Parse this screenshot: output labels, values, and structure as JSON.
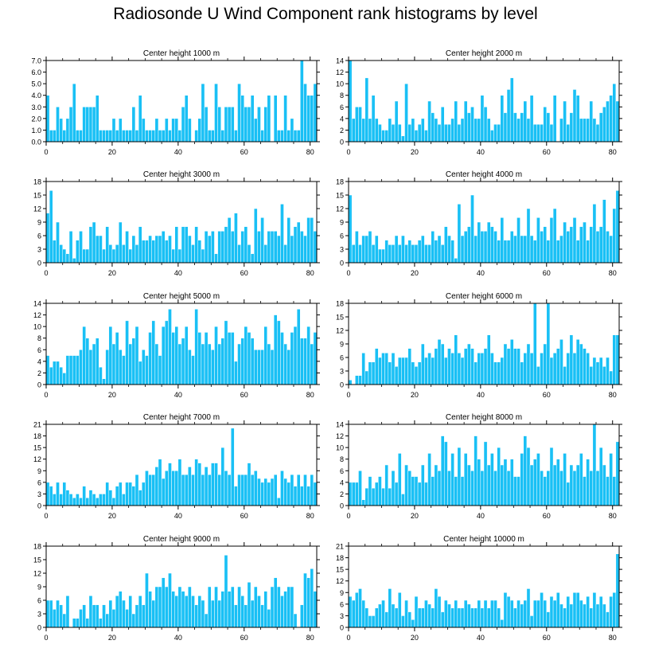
{
  "figure_title": "Radiosonde U Wind Component rank histograms by level",
  "colors": {
    "bar": "#19c0f5",
    "bar_edge": "#ffffff",
    "axis": "#000000"
  },
  "chart_data": [
    {
      "type": "bar",
      "title": "Center height 1000 m",
      "xlim": [
        0,
        82
      ],
      "ylim": [
        0,
        7
      ],
      "xticks": [
        0,
        20,
        40,
        60,
        80
      ],
      "yticks": [
        0,
        1,
        2,
        3,
        4,
        5,
        6,
        7
      ],
      "ytick_labels": [
        "0.0",
        "1.0",
        "2.0",
        "3.0",
        "4.0",
        "5.0",
        "6.0",
        "7.0"
      ],
      "values": [
        4,
        1,
        1,
        3,
        2,
        1,
        2,
        3,
        5,
        1,
        1,
        3,
        3,
        3,
        3,
        4,
        1,
        1,
        1,
        1,
        2,
        1,
        2,
        1,
        1,
        1,
        3,
        1,
        4,
        2,
        1,
        1,
        1,
        2,
        1,
        1,
        2,
        1,
        2,
        2,
        1,
        3,
        4,
        2,
        0,
        1,
        2,
        5,
        3,
        1,
        1,
        5,
        3,
        1,
        3,
        3,
        3,
        1,
        5,
        4,
        3,
        3,
        4,
        2,
        3,
        1,
        3,
        4,
        0,
        4,
        1,
        1,
        4,
        1,
        2,
        1,
        1,
        7,
        5,
        4,
        4,
        5
      ]
    },
    {
      "type": "bar",
      "title": "Center height 2000 m",
      "xlim": [
        0,
        82
      ],
      "ylim": [
        0,
        14
      ],
      "xticks": [
        0,
        20,
        40,
        60,
        80
      ],
      "yticks": [
        0,
        2,
        4,
        6,
        8,
        10,
        12,
        14
      ],
      "ytick_labels": [
        "0",
        "2",
        "4",
        "6",
        "8",
        "10",
        "12",
        "14"
      ],
      "values": [
        14,
        4,
        6,
        6,
        4,
        11,
        4,
        8,
        4,
        3,
        2,
        2,
        4,
        3,
        7,
        3,
        1,
        10,
        3,
        4,
        2,
        3,
        4,
        2,
        7,
        5,
        4,
        3,
        6,
        3,
        3,
        4,
        7,
        3,
        4,
        7,
        5,
        6,
        4,
        4,
        8,
        6,
        4,
        2,
        3,
        3,
        8,
        5,
        9,
        11,
        5,
        4,
        5,
        7,
        4,
        8,
        3,
        3,
        3,
        6,
        5,
        3,
        8,
        0,
        4,
        7,
        3,
        5,
        9,
        8,
        4,
        4,
        4,
        7,
        4,
        3,
        5,
        6,
        7,
        8,
        10,
        7
      ]
    },
    {
      "type": "bar",
      "title": "Center height 3000 m",
      "xlim": [
        0,
        82
      ],
      "ylim": [
        0,
        18
      ],
      "xticks": [
        0,
        20,
        40,
        60,
        80
      ],
      "yticks": [
        0,
        3,
        6,
        9,
        12,
        15,
        18
      ],
      "ytick_labels": [
        "0",
        "3",
        "6",
        "9",
        "12",
        "15",
        "18"
      ],
      "values": [
        11,
        16,
        5,
        9,
        4,
        3,
        2,
        7,
        1,
        5,
        7,
        3,
        3,
        8,
        9,
        6,
        6,
        3,
        8,
        4,
        3,
        4,
        9,
        4,
        7,
        3,
        6,
        4,
        8,
        5,
        5,
        6,
        5,
        6,
        6,
        7,
        5,
        6,
        3,
        8,
        3,
        8,
        8,
        6,
        4,
        8,
        5,
        3,
        7,
        6,
        7,
        2,
        7,
        7,
        8,
        10,
        7,
        11,
        4,
        7,
        8,
        4,
        2,
        12,
        7,
        10,
        4,
        7,
        7,
        7,
        6,
        13,
        4,
        10,
        6,
        8,
        9,
        7,
        6,
        10,
        10,
        7
      ]
    },
    {
      "type": "bar",
      "title": "Center height 4000 m",
      "xlim": [
        0,
        82
      ],
      "ylim": [
        0,
        18
      ],
      "xticks": [
        0,
        20,
        40,
        60,
        80
      ],
      "yticks": [
        0,
        3,
        6,
        9,
        12,
        15,
        18
      ],
      "ytick_labels": [
        "0",
        "3",
        "6",
        "9",
        "12",
        "15",
        "18"
      ],
      "values": [
        15,
        4,
        7,
        4,
        6,
        6,
        7,
        4,
        6,
        3,
        3,
        5,
        4,
        4,
        6,
        4,
        6,
        4,
        5,
        4,
        4,
        5,
        6,
        4,
        4,
        7,
        5,
        6,
        4,
        8,
        6,
        5,
        1,
        13,
        6,
        7,
        8,
        15,
        6,
        9,
        7,
        7,
        9,
        8,
        7,
        5,
        10,
        5,
        5,
        7,
        6,
        10,
        6,
        6,
        12,
        6,
        5,
        10,
        7,
        8,
        5,
        10,
        12,
        5,
        6,
        9,
        7,
        8,
        10,
        5,
        8,
        9,
        5,
        8,
        13,
        7,
        8,
        14,
        7,
        6,
        12,
        16
      ]
    },
    {
      "type": "bar",
      "title": "Center height 5000 m",
      "xlim": [
        0,
        82
      ],
      "ylim": [
        0,
        14
      ],
      "xticks": [
        0,
        20,
        40,
        60,
        80
      ],
      "yticks": [
        0,
        2,
        4,
        6,
        8,
        10,
        12,
        14
      ],
      "ytick_labels": [
        "0",
        "2",
        "4",
        "6",
        "8",
        "10",
        "12",
        "14"
      ],
      "values": [
        5,
        3,
        4,
        4,
        3,
        2,
        5,
        5,
        5,
        5,
        6,
        10,
        8,
        6,
        7,
        8,
        3,
        1,
        6,
        10,
        7,
        9,
        6,
        5,
        11,
        7,
        8,
        10,
        4,
        6,
        5,
        9,
        11,
        7,
        5,
        10,
        11,
        13,
        9,
        10,
        7,
        8,
        10,
        6,
        5,
        13,
        9,
        7,
        9,
        7,
        6,
        10,
        7,
        8,
        11,
        9,
        9,
        4,
        7,
        8,
        10,
        9,
        8,
        6,
        6,
        6,
        10,
        7,
        6,
        12,
        11,
        9,
        7,
        6,
        9,
        10,
        13,
        8,
        8,
        10,
        7,
        9
      ]
    },
    {
      "type": "bar",
      "title": "Center height 6000 m",
      "xlim": [
        0,
        82
      ],
      "ylim": [
        0,
        18
      ],
      "xticks": [
        0,
        20,
        40,
        60,
        80
      ],
      "yticks": [
        0,
        3,
        6,
        9,
        12,
        15,
        18
      ],
      "ytick_labels": [
        "0",
        "3",
        "6",
        "9",
        "12",
        "15",
        "18"
      ],
      "values": [
        1,
        0,
        2,
        2,
        7,
        3,
        5,
        5,
        8,
        6,
        7,
        7,
        5,
        7,
        4,
        6,
        6,
        6,
        8,
        5,
        4,
        5,
        9,
        6,
        7,
        6,
        8,
        10,
        9,
        6,
        8,
        7,
        11,
        7,
        6,
        8,
        9,
        8,
        5,
        7,
        7,
        8,
        11,
        7,
        5,
        5,
        6,
        9,
        8,
        10,
        8,
        8,
        5,
        7,
        9,
        7,
        18,
        4,
        7,
        9,
        18,
        6,
        7,
        8,
        10,
        4,
        7,
        11,
        7,
        10,
        9,
        8,
        7,
        4,
        6,
        5,
        6,
        4,
        6,
        3,
        11,
        11
      ]
    },
    {
      "type": "bar",
      "title": "Center height 7000 m",
      "xlim": [
        0,
        82
      ],
      "ylim": [
        0,
        21
      ],
      "xticks": [
        0,
        20,
        40,
        60,
        80
      ],
      "yticks": [
        0,
        3,
        6,
        9,
        12,
        15,
        18,
        21
      ],
      "ytick_labels": [
        "0",
        "3",
        "6",
        "9",
        "12",
        "15",
        "18",
        "21"
      ],
      "values": [
        6,
        5,
        3,
        6,
        3,
        6,
        4,
        3,
        2,
        3,
        2,
        5,
        2,
        4,
        3,
        2,
        3,
        3,
        6,
        4,
        2,
        5,
        6,
        3,
        6,
        6,
        5,
        8,
        4,
        6,
        9,
        8,
        8,
        10,
        12,
        7,
        9,
        11,
        9,
        9,
        12,
        8,
        8,
        10,
        8,
        12,
        11,
        8,
        10,
        8,
        11,
        11,
        8,
        15,
        9,
        8,
        20,
        5,
        8,
        8,
        8,
        11,
        8,
        9,
        7,
        6,
        7,
        6,
        7,
        8,
        2,
        9,
        7,
        6,
        8,
        5,
        8,
        5,
        8,
        5,
        8,
        6
      ]
    },
    {
      "type": "bar",
      "title": "Center height 8000 m",
      "xlim": [
        0,
        82
      ],
      "ylim": [
        0,
        14
      ],
      "xticks": [
        0,
        20,
        40,
        60,
        80
      ],
      "yticks": [
        0,
        2,
        4,
        6,
        8,
        10,
        12,
        14
      ],
      "ytick_labels": [
        "0",
        "2",
        "4",
        "6",
        "8",
        "10",
        "12",
        "14"
      ],
      "values": [
        4,
        4,
        4,
        6,
        1,
        3,
        5,
        3,
        4,
        5,
        3,
        7,
        3,
        6,
        4,
        9,
        2,
        7,
        6,
        5,
        5,
        4,
        7,
        4,
        9,
        5,
        7,
        6,
        12,
        11,
        6,
        9,
        5,
        10,
        5,
        9,
        7,
        6,
        12,
        8,
        6,
        11,
        7,
        9,
        6,
        10,
        7,
        8,
        6,
        8,
        5,
        5,
        9,
        12,
        10,
        7,
        8,
        9,
        6,
        5,
        6,
        10,
        7,
        8,
        6,
        9,
        4,
        7,
        6,
        7,
        9,
        5,
        8,
        6,
        14,
        6,
        10,
        7,
        5,
        9,
        5,
        11
      ]
    },
    {
      "type": "bar",
      "title": "Center height 9000 m",
      "xlim": [
        0,
        82
      ],
      "ylim": [
        0,
        18
      ],
      "xticks": [
        0,
        20,
        40,
        60,
        80
      ],
      "yticks": [
        0,
        3,
        6,
        9,
        12,
        15,
        18
      ],
      "ytick_labels": [
        "0",
        "3",
        "6",
        "9",
        "12",
        "15",
        "18"
      ],
      "values": [
        6,
        6,
        4,
        6,
        5,
        3,
        7,
        0,
        2,
        2,
        4,
        5,
        2,
        7,
        5,
        5,
        2,
        5,
        3,
        6,
        4,
        7,
        8,
        6,
        4,
        7,
        3,
        5,
        7,
        5,
        12,
        8,
        6,
        9,
        9,
        11,
        9,
        12,
        8,
        7,
        9,
        8,
        7,
        9,
        7,
        5,
        7,
        6,
        3,
        9,
        6,
        9,
        6,
        8,
        16,
        8,
        9,
        5,
        9,
        7,
        5,
        10,
        6,
        9,
        7,
        5,
        8,
        4,
        9,
        11,
        9,
        7,
        8,
        9,
        9,
        3,
        0,
        5,
        12,
        11,
        13,
        8
      ]
    },
    {
      "type": "bar",
      "title": "Center height 10000 m",
      "xlim": [
        0,
        82
      ],
      "ylim": [
        0,
        21
      ],
      "xticks": [
        0,
        20,
        40,
        60,
        80
      ],
      "yticks": [
        0,
        3,
        6,
        9,
        12,
        15,
        18,
        21
      ],
      "ytick_labels": [
        "0",
        "3",
        "6",
        "9",
        "12",
        "15",
        "18",
        "21"
      ],
      "values": [
        8,
        7,
        9,
        10,
        7,
        5,
        3,
        3,
        5,
        6,
        7,
        4,
        10,
        6,
        5,
        9,
        3,
        7,
        4,
        2,
        8,
        5,
        5,
        7,
        6,
        5,
        10,
        8,
        4,
        7,
        6,
        5,
        7,
        5,
        5,
        7,
        6,
        5,
        5,
        7,
        5,
        7,
        5,
        7,
        7,
        5,
        2,
        9,
        8,
        7,
        5,
        7,
        6,
        7,
        10,
        3,
        7,
        7,
        9,
        7,
        4,
        8,
        7,
        9,
        6,
        5,
        8,
        6,
        9,
        9,
        7,
        6,
        8,
        5,
        9,
        6,
        8,
        6,
        4,
        8,
        9,
        19
      ]
    }
  ]
}
